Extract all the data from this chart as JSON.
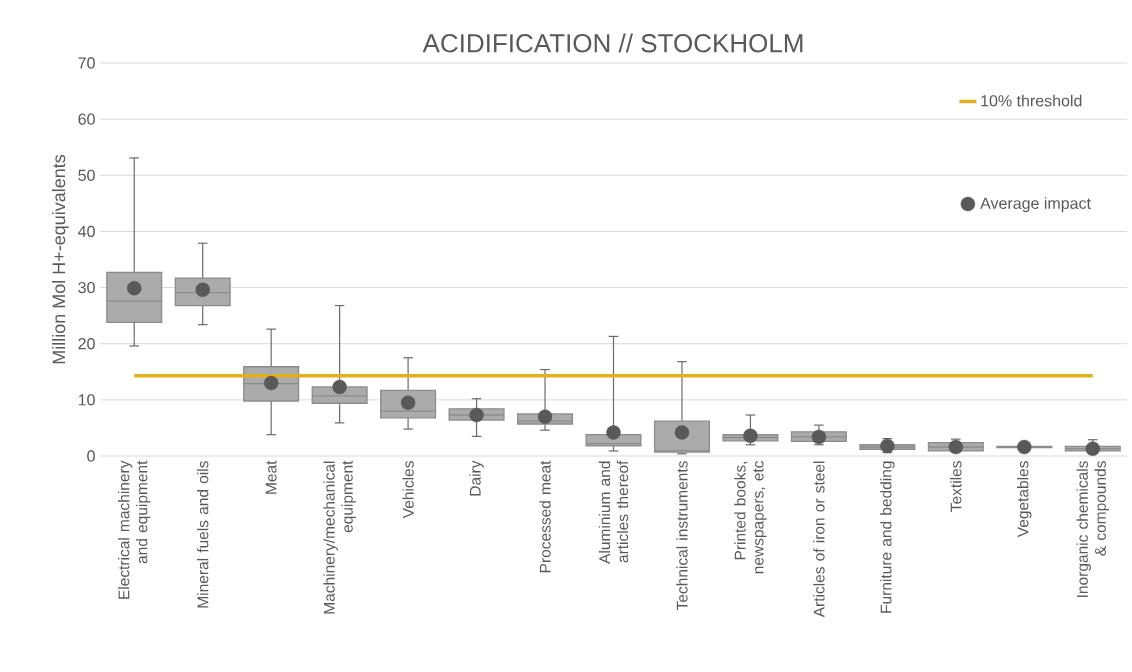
{
  "chart_data": {
    "type": "box",
    "title": "ACIDIFICATION // STOCKHOLM",
    "ylabel": "Million Mol H+-equivalents",
    "categories": [
      "Electrical machinery and equipment",
      "Mineral fuels and oils",
      "Meat",
      "Machinery/mechanical equipment",
      "Vehicles",
      "Dairy",
      "Processed meat",
      "Aluminium and articles thereof",
      "Technical instruments",
      "Printed books, newspapers, etc",
      "Articles of iron or steel",
      "Furniture and bedding",
      "Textiles",
      "Vegetables",
      "Inorganic chemicals & compounds"
    ],
    "color": "#ababab",
    "boxes": [
      {
        "low": 19.6,
        "q1": 23.8,
        "median": 27.6,
        "q3": 32.7,
        "high": 53.1
      },
      {
        "low": 23.4,
        "q1": 26.8,
        "median": 29.1,
        "q3": 31.7,
        "high": 37.9
      },
      {
        "low": 3.8,
        "q1": 9.8,
        "median": 12.9,
        "q3": 15.9,
        "high": 22.6
      },
      {
        "low": 5.9,
        "q1": 9.4,
        "median": 10.7,
        "q3": 12.3,
        "high": 26.8
      },
      {
        "low": 4.8,
        "q1": 6.8,
        "median": 8.0,
        "q3": 11.7,
        "high": 17.5
      },
      {
        "low": 3.5,
        "q1": 6.4,
        "median": 7.3,
        "q3": 8.4,
        "high": 10.2
      },
      {
        "low": 4.6,
        "q1": 5.7,
        "median": 6.2,
        "q3": 7.5,
        "high": 15.4
      },
      {
        "low": 0.9,
        "q1": 1.8,
        "median": 2.2,
        "q3": 3.8,
        "high": 21.3
      },
      {
        "low": 0.4,
        "q1": 0.7,
        "median": 0.9,
        "q3": 6.2,
        "high": 16.8
      },
      {
        "low": 2.0,
        "q1": 2.7,
        "median": 3.3,
        "q3": 3.8,
        "high": 7.3
      },
      {
        "low": 2.0,
        "q1": 2.6,
        "median": 3.4,
        "q3": 4.3,
        "high": 5.5
      },
      {
        "low": 0.6,
        "q1": 1.2,
        "median": 1.6,
        "q3": 2.0,
        "high": 3.1
      },
      {
        "low": 0.7,
        "q1": 0.9,
        "median": 1.6,
        "q3": 2.4,
        "high": 3.0
      },
      {
        "low": 1.5,
        "q1": 1.5,
        "median": 1.6,
        "q3": 1.7,
        "high": 1.7
      },
      {
        "low": 0.6,
        "q1": 0.9,
        "median": 1.3,
        "q3": 1.7,
        "high": 2.9
      }
    ],
    "series": [
      {
        "name": "Average impact",
        "type": "scatter",
        "color": "#595959",
        "x": [
          "Electrical machinery and equipment",
          "Mineral fuels and oils",
          "Meat",
          "Machinery/mechanical equipment",
          "Vehicles",
          "Dairy",
          "Processed meat",
          "Aluminium and articles thereof",
          "Technical instruments",
          "Printed books, newspapers, etc",
          "Articles of iron or steel",
          "Furniture and bedding",
          "Textiles",
          "Vegetables",
          "Inorganic chemicals & compounds"
        ],
        "values": [
          29.9,
          29.6,
          13.0,
          12.3,
          9.5,
          7.3,
          7.0,
          4.2,
          4.2,
          3.6,
          3.4,
          1.8,
          1.6,
          1.6,
          1.3
        ]
      }
    ],
    "ref_lines": [
      {
        "axis": "y",
        "value": 14.3,
        "label": "10% threshold",
        "color": "#e0b11e"
      }
    ],
    "ylim": [
      0,
      70
    ],
    "yticks": [
      0,
      10,
      20,
      30,
      40,
      50,
      60,
      70
    ],
    "grid": "y",
    "legend": "top right",
    "marker": "circle"
  }
}
